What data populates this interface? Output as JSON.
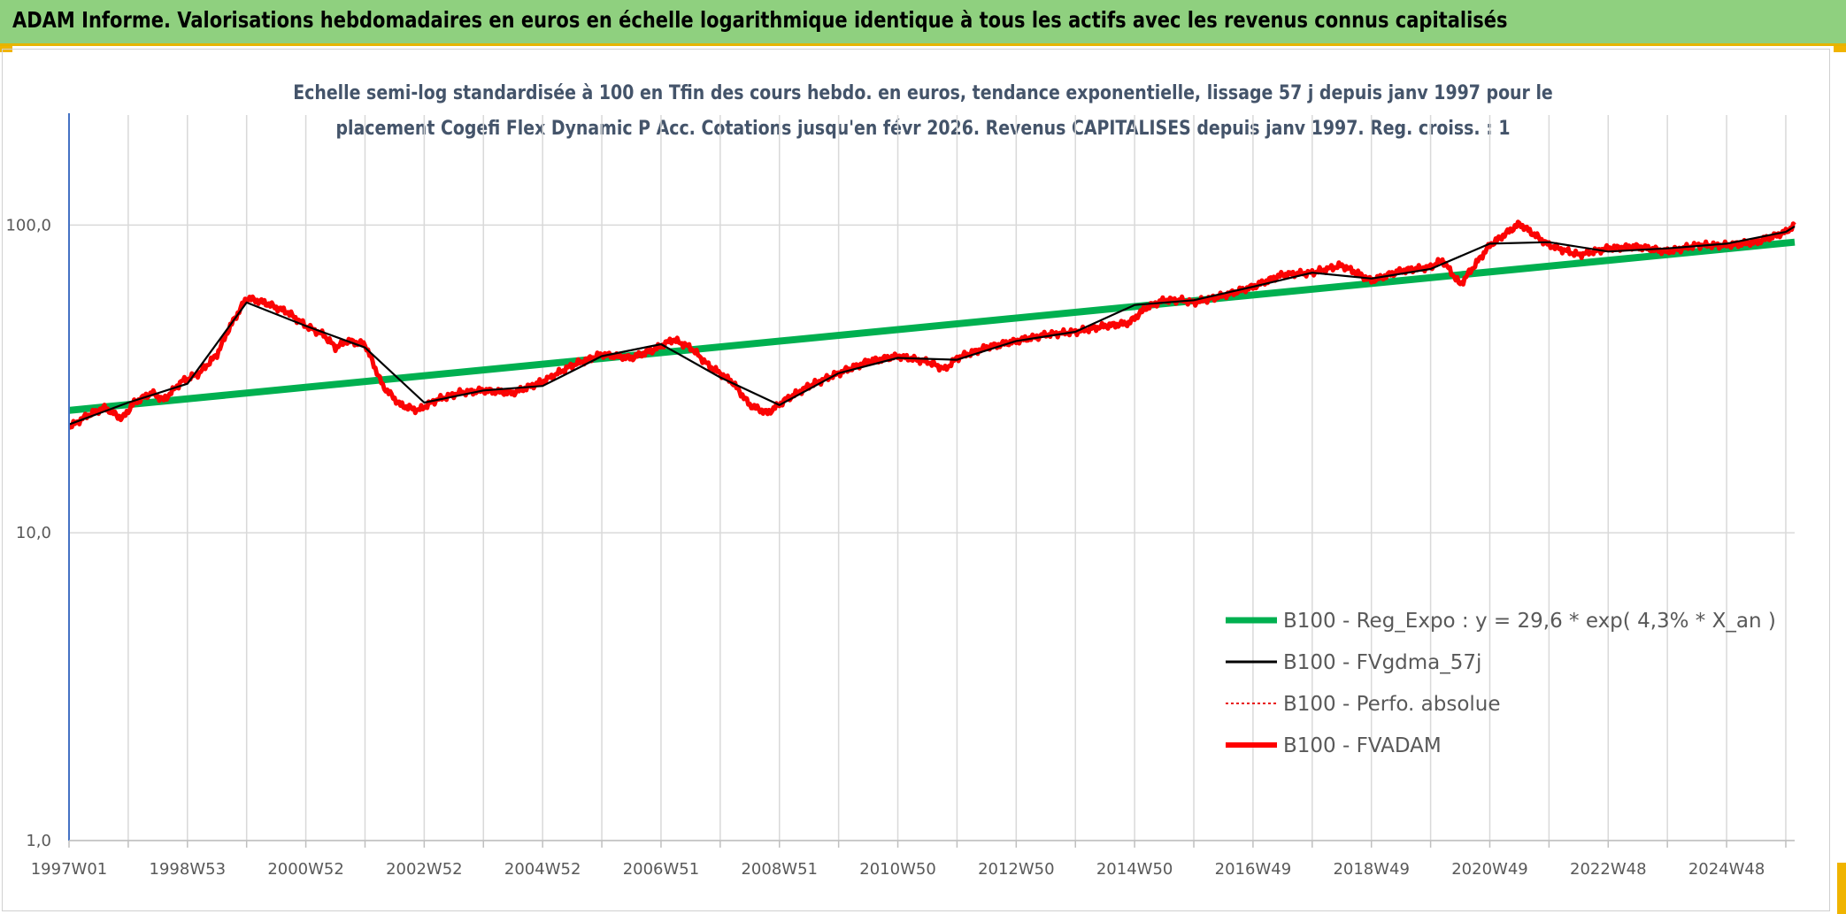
{
  "header": {
    "title": "ADAM Informe. Valorisations hebdomadaires en euros en échelle logarithmique identique à tous les actifs avec les revenus connus capitalisés"
  },
  "colors": {
    "header_bg": "#8fd07f",
    "accent_yellow": "#f0b400",
    "reg_expo": "#00b050",
    "fvgdma": "#000000",
    "perfo": "#e81010",
    "fvadam": "#ff0000"
  },
  "chart_data": {
    "type": "line",
    "title_line1": "Echelle semi-log standardisée à 100 en Tfin des cours hebdo. en euros, tendance exponentielle, lissage 57 j depuis janv 1997 pour le",
    "title_line2": "placement Cogefi Flex Dynamic P Acc. Cotations jusqu'en févr 2026. Revenus CAPITALISES depuis janv 1997. Reg. croiss. : 1",
    "y_scale": "log",
    "ylim": [
      1,
      100
    ],
    "y_ticks": [
      "1,0",
      "10,0",
      "100,0"
    ],
    "x_ticks": [
      "1997W01",
      "1998W53",
      "2000W52",
      "2002W52",
      "2004W52",
      "2006W51",
      "2008W51",
      "2010W50",
      "2012W50",
      "2014W50",
      "2016W49",
      "2018W49",
      "2020W49",
      "2022W48",
      "2024W48"
    ],
    "xlim": [
      1997.0,
      2026.15
    ],
    "legend_position": "bottom-right",
    "legend": [
      {
        "name": "B100 - Reg_Expo : y = 29,6 * exp( 4,3% *  X_an )",
        "style": "thick-green"
      },
      {
        "name": "B100 - FVgdma_57j",
        "style": "black"
      },
      {
        "name": "B100 - Perfo. absolue",
        "style": "dotted-red"
      },
      {
        "name": "B100 - FVADAM",
        "style": "thick-red"
      }
    ],
    "series": [
      {
        "name": "B100 - Reg_Expo : y = 29,6 * exp( 4,3% *  X_an )",
        "x": [
          1997.0,
          2026.15
        ],
        "y": [
          25.0,
          88.0
        ]
      },
      {
        "name": "B100 - FVADAM",
        "x": [
          1997.0,
          1997.3,
          1997.6,
          1997.9,
          1998.1,
          1998.4,
          1998.6,
          1998.9,
          1999.2,
          1999.5,
          1999.7,
          2000.0,
          2000.3,
          2000.7,
          2001.0,
          2001.3,
          2001.5,
          2001.7,
          2002.0,
          2002.3,
          2002.6,
          2002.9,
          2003.2,
          2003.6,
          2004.0,
          2004.5,
          2005.0,
          2005.5,
          2006.0,
          2006.5,
          2006.9,
          2007.2,
          2007.5,
          2007.8,
          2008.2,
          2008.5,
          2008.8,
          2009.1,
          2009.5,
          2010.0,
          2010.5,
          2011.0,
          2011.5,
          2011.8,
          2012.0,
          2012.5,
          2013.0,
          2013.5,
          2014.0,
          2014.5,
          2014.9,
          2015.2,
          2015.5,
          2015.8,
          2016.0,
          2016.5,
          2017.0,
          2017.5,
          2018.0,
          2018.5,
          2019.0,
          2019.5,
          2020.0,
          2020.2,
          2020.5,
          2021.0,
          2021.5,
          2022.0,
          2022.5,
          2023.0,
          2023.5,
          2024.0,
          2024.5,
          2025.0,
          2025.5,
          2026.0,
          2026.15
        ],
        "y": [
          22.0,
          24.0,
          25.5,
          23.5,
          26.5,
          28.5,
          27.0,
          31.0,
          33.0,
          38.0,
          46.0,
          58.0,
          56.0,
          52.0,
          47.0,
          44.0,
          40.0,
          42.0,
          41.0,
          30.0,
          26.0,
          25.0,
          27.0,
          28.5,
          29.0,
          28.5,
          31.0,
          35.0,
          38.0,
          37.0,
          39.5,
          42.5,
          40.0,
          35.0,
          31.0,
          26.0,
          24.5,
          27.0,
          30.0,
          33.0,
          36.0,
          37.5,
          36.0,
          34.0,
          37.0,
          40.0,
          42.0,
          44.0,
          45.0,
          47.0,
          48.0,
          54.0,
          57.0,
          57.0,
          56.0,
          59.0,
          63.0,
          69.0,
          70.0,
          74.0,
          66.0,
          71.0,
          73.0,
          77.0,
          64.0,
          86.0,
          101.0,
          86.0,
          80.0,
          84.0,
          85.0,
          82.0,
          86.0,
          86.0,
          88.0,
          95.0,
          100.0
        ]
      },
      {
        "name": "B100 - FVgdma_57j",
        "x": [
          1997.0,
          1998.0,
          1999.0,
          2000.0,
          2001.0,
          2002.0,
          2003.0,
          2004.0,
          2005.0,
          2006.0,
          2007.0,
          2008.0,
          2009.0,
          2010.0,
          2011.0,
          2012.0,
          2013.0,
          2014.0,
          2015.0,
          2016.0,
          2017.0,
          2018.0,
          2019.0,
          2020.0,
          2021.0,
          2022.0,
          2023.0,
          2024.0,
          2025.0,
          2026.0,
          2026.15
        ],
        "y": [
          22.5,
          26.5,
          30.5,
          56.0,
          47.0,
          40.0,
          26.5,
          29.0,
          30.0,
          37.5,
          41.0,
          32.0,
          26.0,
          33.0,
          37.0,
          36.5,
          42.0,
          45.0,
          55.0,
          57.0,
          63.0,
          70.0,
          67.0,
          72.0,
          87.0,
          88.0,
          82.0,
          84.0,
          87.0,
          95.0,
          99.0
        ]
      }
    ]
  }
}
